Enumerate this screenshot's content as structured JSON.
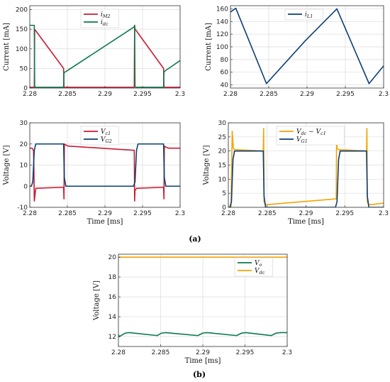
{
  "captions": {
    "a": "(a)",
    "b": "(b)"
  },
  "colors": {
    "red": "#cc1a33",
    "green": "#0b7a4b",
    "blue": "#0b3e74",
    "orange": "#f5a300"
  },
  "chart_data": [
    {
      "id": "p1",
      "type": "line",
      "xlabel": "",
      "ylabel": "Current [mA]",
      "xlim": [
        2.28,
        2.3
      ],
      "ylim": [
        0,
        210
      ],
      "xticks": [
        2.28,
        2.285,
        2.29,
        2.295,
        2.3
      ],
      "xtick_labels": [
        "2.28",
        "2.285",
        "2.29",
        "2.295",
        "2.3"
      ],
      "yticks": [
        0,
        50,
        100,
        150,
        200
      ],
      "ytick_labels": [
        "0",
        "50",
        "100",
        "150",
        "200"
      ],
      "grid": true,
      "legend": "top-right",
      "series": [
        {
          "name": "i_M2",
          "legend_main": "i",
          "legend_sub": "M2",
          "color": "#cc1a33",
          "x": [
            2.28,
            2.2806,
            2.28065,
            2.2807,
            2.2808,
            2.2845,
            2.28455,
            2.2846,
            2.2848,
            2.2939,
            2.29395,
            2.294,
            2.2941,
            2.2978,
            2.29785,
            2.2979,
            2.2981,
            2.3
          ],
          "y": [
            2,
            2,
            150,
            148,
            146,
            50,
            4,
            2,
            2,
            2,
            160,
            150,
            148,
            50,
            4,
            2,
            2,
            2
          ]
        },
        {
          "name": "i_dc",
          "legend_main": "i",
          "legend_sub": "dc",
          "color": "#0b7a4b",
          "x": [
            2.28,
            2.2801,
            2.2806,
            2.28065,
            2.2807,
            2.2808,
            2.2845,
            2.28455,
            2.2846,
            2.2848,
            2.2939,
            2.29395,
            2.294,
            2.2941,
            2.2978,
            2.29785,
            2.2979,
            2.2981,
            2.3
          ],
          "y": [
            160,
            160,
            160,
            4,
            2,
            2,
            2,
            38,
            40,
            42,
            156,
            160,
            4,
            2,
            2,
            40,
            42,
            45,
            70
          ]
        }
      ]
    },
    {
      "id": "p2",
      "type": "line",
      "xlabel": "",
      "ylabel": "Current [mA]",
      "xlim": [
        2.28,
        2.3
      ],
      "ylim": [
        35,
        165
      ],
      "xticks": [
        2.28,
        2.285,
        2.29,
        2.295,
        2.3
      ],
      "xtick_labels": [
        "2.28",
        "2.285",
        "2.29",
        "2.295",
        "2.3"
      ],
      "yticks": [
        40,
        60,
        80,
        100,
        120,
        140,
        160
      ],
      "ytick_labels": [
        "40",
        "60",
        "80",
        "100",
        "120",
        "140",
        "160"
      ],
      "grid": true,
      "legend": "top-right",
      "series": [
        {
          "name": "i_L1",
          "legend_main": "i",
          "legend_sub": "L1",
          "color": "#0b3e74",
          "x": [
            2.28,
            2.2807,
            2.2847,
            2.2898,
            2.2939,
            2.2981,
            2.3
          ],
          "y": [
            155,
            161,
            42,
            110,
            160,
            42,
            70
          ]
        }
      ]
    },
    {
      "id": "p3",
      "type": "line",
      "xlabel": "Time [ms]",
      "ylabel": "Voltage [V]",
      "xlim": [
        2.28,
        2.3
      ],
      "ylim": [
        -10,
        30
      ],
      "xticks": [
        2.28,
        2.285,
        2.29,
        2.295,
        2.3
      ],
      "xtick_labels": [
        "2.28",
        "2.285",
        "2.29",
        "2.295",
        "2.3"
      ],
      "yticks": [
        -10,
        0,
        10,
        20,
        30
      ],
      "ytick_labels": [
        "-10",
        "0",
        "10",
        "20",
        "30"
      ],
      "grid": true,
      "legend": "top-right",
      "series": [
        {
          "name": "V_c1",
          "legend_main": "V",
          "legend_sub": "c1",
          "color": "#cc1a33",
          "x": [
            2.28,
            2.2803,
            2.2805,
            2.28055,
            2.2806,
            2.2808,
            2.2845,
            2.28455,
            2.2846,
            2.2848,
            2.2851,
            2.2939,
            2.29395,
            2.294,
            2.2942,
            2.2978,
            2.29785,
            2.2979,
            2.2981,
            2.2985,
            2.3
          ],
          "y": [
            18,
            18,
            17,
            8,
            -7,
            -1,
            -0.5,
            -6,
            20,
            19.5,
            19,
            17,
            -7,
            -2,
            -1,
            -0.5,
            -6,
            19,
            18.5,
            18,
            18
          ]
        },
        {
          "name": "V_G2",
          "legend_main": "V",
          "legend_sub": "G2",
          "color": "#0b3e74",
          "x": [
            2.28,
            2.2802,
            2.2804,
            2.2806,
            2.2808,
            2.2845,
            2.2846,
            2.2848,
            2.2938,
            2.294,
            2.2942,
            2.2944,
            2.2978,
            2.2979,
            2.2981,
            2.3
          ],
          "y": [
            0,
            0,
            2,
            17,
            20,
            20,
            4,
            0,
            0,
            2,
            17,
            20,
            20,
            4,
            0,
            0
          ]
        }
      ]
    },
    {
      "id": "p4",
      "type": "line",
      "xlabel": "Time [ms]",
      "ylabel": "Voltage [V]",
      "xlim": [
        2.28,
        2.3
      ],
      "ylim": [
        0,
        30
      ],
      "xticks": [
        2.28,
        2.285,
        2.29,
        2.295,
        2.3
      ],
      "xtick_labels": [
        "2.28",
        "2.285",
        "2.29",
        "2.295",
        "2.3"
      ],
      "yticks": [
        0,
        5,
        10,
        15,
        20,
        25,
        30
      ],
      "ytick_labels": [
        "0",
        "5",
        "10",
        "15",
        "20",
        "25",
        "30"
      ],
      "grid": true,
      "legend": "top-right",
      "series": [
        {
          "name": "V_dc − V_c1",
          "legend_main": "V",
          "legend_sub": "dc",
          "legend_rest": " − V",
          "legend_sub2": "c1",
          "color": "#f5a300",
          "x": [
            2.28,
            2.28035,
            2.2805,
            2.28065,
            2.2808,
            2.2845,
            2.28455,
            2.2846,
            2.2848,
            2.2852,
            2.2939,
            2.29395,
            2.294,
            2.2942,
            2.2978,
            2.29785,
            2.2979,
            2.2981,
            2.2985,
            2.3
          ],
          "y": [
            0,
            0,
            27,
            21,
            20.5,
            20,
            28,
            2,
            1,
            1,
            3,
            28,
            21,
            20.5,
            20,
            28,
            2,
            1,
            1,
            1.5
          ]
        },
        {
          "name": "V_G1",
          "legend_main": "V",
          "legend_sub": "G1",
          "color": "#0b3e74",
          "x": [
            2.28,
            2.2802,
            2.2804,
            2.2806,
            2.2808,
            2.2845,
            2.2846,
            2.2848,
            2.2938,
            2.294,
            2.2942,
            2.2944,
            2.2978,
            2.2979,
            2.2981,
            2.3
          ],
          "y": [
            0,
            0,
            2,
            17,
            20,
            20,
            4,
            0,
            0,
            2,
            17,
            20,
            20,
            4,
            0,
            0
          ]
        }
      ]
    },
    {
      "id": "p5",
      "type": "line",
      "xlabel": "Time [ms]",
      "ylabel": "Voltage [V]",
      "xlim": [
        2.28,
        2.3
      ],
      "ylim": [
        11,
        20.3
      ],
      "xticks": [
        2.28,
        2.285,
        2.29,
        2.295,
        2.3
      ],
      "xtick_labels": [
        "2.28",
        "2.285",
        "2.29",
        "2.295",
        "2.3"
      ],
      "yticks": [
        12,
        14,
        16,
        18,
        20
      ],
      "ytick_labels": [
        "12",
        "14",
        "16",
        "18",
        "20"
      ],
      "grid": true,
      "legend": "top-right",
      "series": [
        {
          "name": "V_o",
          "legend_main": "V",
          "legend_sub": "o",
          "color": "#0b7a4b",
          "x": [
            2.28,
            2.2801,
            2.2808,
            2.2813,
            2.2846,
            2.2851,
            2.2856,
            2.2894,
            2.29,
            2.2905,
            2.294,
            2.2946,
            2.2951,
            2.2981,
            2.2987,
            2.2992,
            2.3
          ],
          "y": [
            12.2,
            12.0,
            12.35,
            12.4,
            12.1,
            12.35,
            12.4,
            12.1,
            12.35,
            12.4,
            12.1,
            12.35,
            12.4,
            12.1,
            12.35,
            12.4,
            12.4
          ]
        },
        {
          "name": "V_dc",
          "legend_main": "V",
          "legend_sub": "dc",
          "color": "#f5a300",
          "x": [
            2.28,
            2.3
          ],
          "y": [
            20,
            20
          ]
        }
      ]
    }
  ]
}
